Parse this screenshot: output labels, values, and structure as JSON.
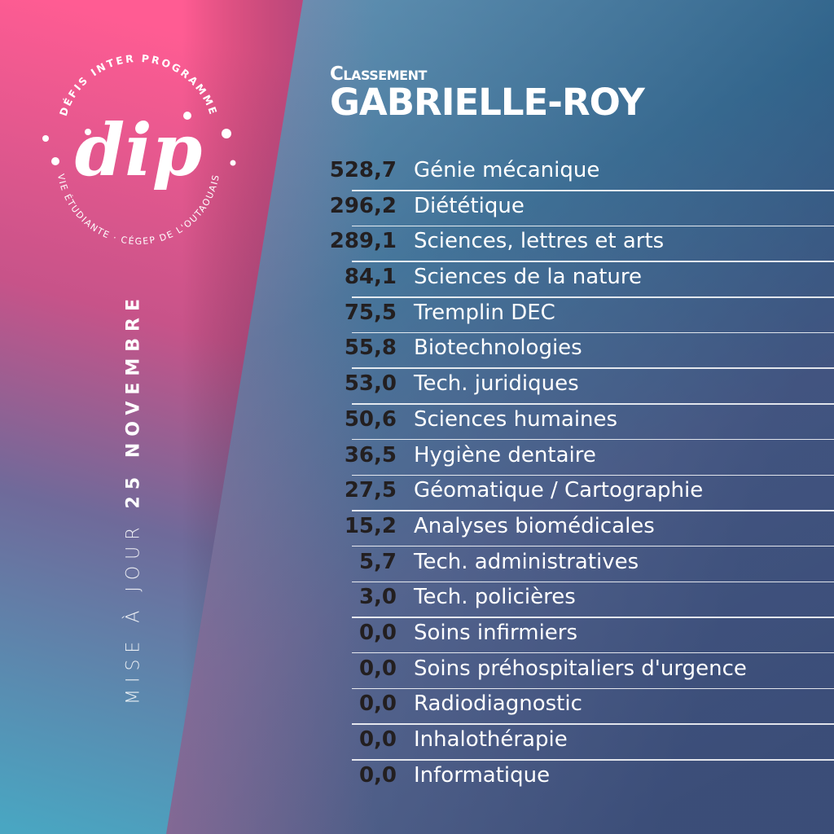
{
  "logo": {
    "text": "dip",
    "arc_top": "DÉFIS INTER PROGRAMME",
    "arc_bottom": "VIE ÉTUDIANTE · CÉGEP DE L'OUTAOUAIS"
  },
  "update": {
    "prefix": "MISE À JOUR",
    "date": "25 NOVEMBRE"
  },
  "header": {
    "label": "Classement",
    "campus": "GABRIELLE-ROY"
  },
  "rankings": [
    {
      "score": "528,7",
      "program": "Génie mécanique"
    },
    {
      "score": "296,2",
      "program": "Diététique"
    },
    {
      "score": "289,1",
      "program": "Sciences, lettres et arts"
    },
    {
      "score": "84,1",
      "program": "Sciences de la nature"
    },
    {
      "score": "75,5",
      "program": "Tremplin DEC"
    },
    {
      "score": "55,8",
      "program": "Biotechnologies"
    },
    {
      "score": "53,0",
      "program": "Tech. juridiques"
    },
    {
      "score": "50,6",
      "program": "Sciences humaines"
    },
    {
      "score": "36,5",
      "program": "Hygiène dentaire"
    },
    {
      "score": "27,5",
      "program": "Géomatique / Cartographie"
    },
    {
      "score": "15,2",
      "program": "Analyses biomédicales"
    },
    {
      "score": "5,7",
      "program": "Tech. administratives"
    },
    {
      "score": "3,0",
      "program": "Tech. policières"
    },
    {
      "score": "0,0",
      "program": "Soins infirmiers"
    },
    {
      "score": "0,0",
      "program": "Soins préhospitaliers d'urgence"
    },
    {
      "score": "0,0",
      "program": "Radiodiagnostic"
    },
    {
      "score": "0,0",
      "program": "Inhalothérapie"
    },
    {
      "score": "0,0",
      "program": "Informatique"
    }
  ],
  "colors": {
    "pink": "#f0588f",
    "teal": "#4aa0bd",
    "navy": "#22577f",
    "purple": "#5b4676"
  }
}
